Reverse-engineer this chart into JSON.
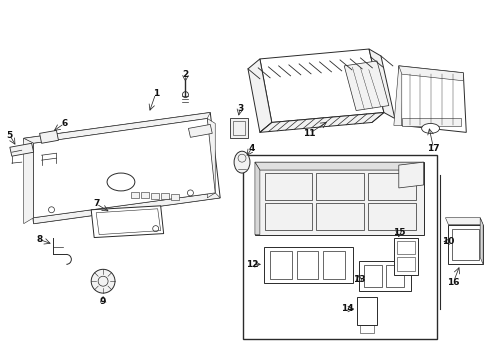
{
  "bg_color": "#ffffff",
  "line_color": "#2a2a2a",
  "label_color": "#111111",
  "fig_width": 4.9,
  "fig_height": 3.6,
  "dpi": 100
}
